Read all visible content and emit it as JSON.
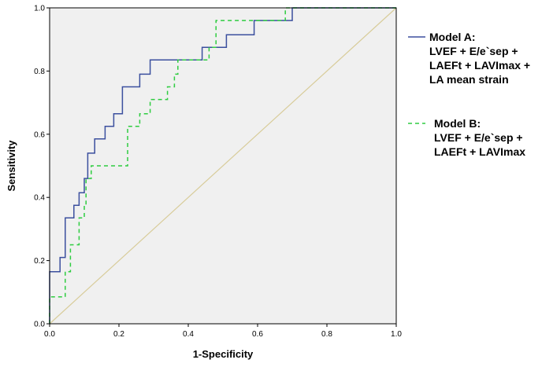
{
  "chart_data": {
    "type": "line",
    "title": "",
    "xlabel": "1-Specificity",
    "ylabel": "Sensitivity",
    "xlim": [
      0,
      1.0
    ],
    "ylim": [
      0,
      1.0
    ],
    "xticks": [
      "0.0",
      "0.2",
      "0.4",
      "0.6",
      "0.8",
      "1.0"
    ],
    "yticks": [
      "0.0",
      "0.2",
      "0.4",
      "0.6",
      "0.8",
      "1.0"
    ],
    "tick_values": [
      0,
      0.2,
      0.4,
      0.6,
      0.8,
      1.0
    ],
    "grid": false,
    "legend_position": "right",
    "plot_background": "#f0f0f0",
    "series": [
      {
        "name": "Model A: LVEF + E/e`sep + LAEFt + LAVImax + LA mean strain",
        "legend_lines": [
          "Model A:",
          "LVEF + E/e`sep +",
          "LAEFt + LAVImax +",
          "LA mean strain"
        ],
        "color": "#3b4f9e",
        "style": "solid",
        "x": [
          0,
          0,
          0.03,
          0.03,
          0.045,
          0.045,
          0.07,
          0.07,
          0.085,
          0.085,
          0.1,
          0.1,
          0.11,
          0.11,
          0.13,
          0.13,
          0.16,
          0.16,
          0.185,
          0.185,
          0.21,
          0.21,
          0.26,
          0.26,
          0.29,
          0.29,
          0.44,
          0.44,
          0.51,
          0.51,
          0.59,
          0.59,
          0.7,
          0.7,
          1.0
        ],
        "y": [
          0,
          0.165,
          0.165,
          0.21,
          0.21,
          0.335,
          0.335,
          0.375,
          0.375,
          0.415,
          0.415,
          0.46,
          0.46,
          0.54,
          0.54,
          0.585,
          0.585,
          0.625,
          0.625,
          0.665,
          0.665,
          0.75,
          0.75,
          0.79,
          0.79,
          0.835,
          0.835,
          0.875,
          0.875,
          0.915,
          0.915,
          0.96,
          0.96,
          1.0,
          1.0
        ]
      },
      {
        "name": "Model B: LVEF + E/e`sep + LAEFt + LAVImax",
        "legend_lines": [
          "Model B:",
          "LVEF + E/e`sep +",
          "LAEFt + LAVImax"
        ],
        "color": "#2ecc40",
        "style": "dashed",
        "x": [
          0,
          0,
          0.045,
          0.045,
          0.06,
          0.06,
          0.085,
          0.085,
          0.1,
          0.1,
          0.105,
          0.105,
          0.12,
          0.12,
          0.225,
          0.225,
          0.26,
          0.26,
          0.29,
          0.29,
          0.34,
          0.34,
          0.36,
          0.36,
          0.37,
          0.37,
          0.46,
          0.46,
          0.48,
          0.48,
          0.68,
          0.68,
          1.0
        ],
        "y": [
          0,
          0.085,
          0.085,
          0.165,
          0.165,
          0.25,
          0.25,
          0.335,
          0.335,
          0.375,
          0.375,
          0.46,
          0.46,
          0.5,
          0.5,
          0.625,
          0.625,
          0.665,
          0.665,
          0.71,
          0.71,
          0.75,
          0.75,
          0.79,
          0.79,
          0.835,
          0.835,
          0.875,
          0.875,
          0.96,
          0.96,
          1.0,
          1.0
        ]
      },
      {
        "name": "reference",
        "color": "#d8cc9a",
        "style": "solid",
        "x": [
          0,
          1.0
        ],
        "y": [
          0,
          1.0
        ]
      }
    ]
  }
}
